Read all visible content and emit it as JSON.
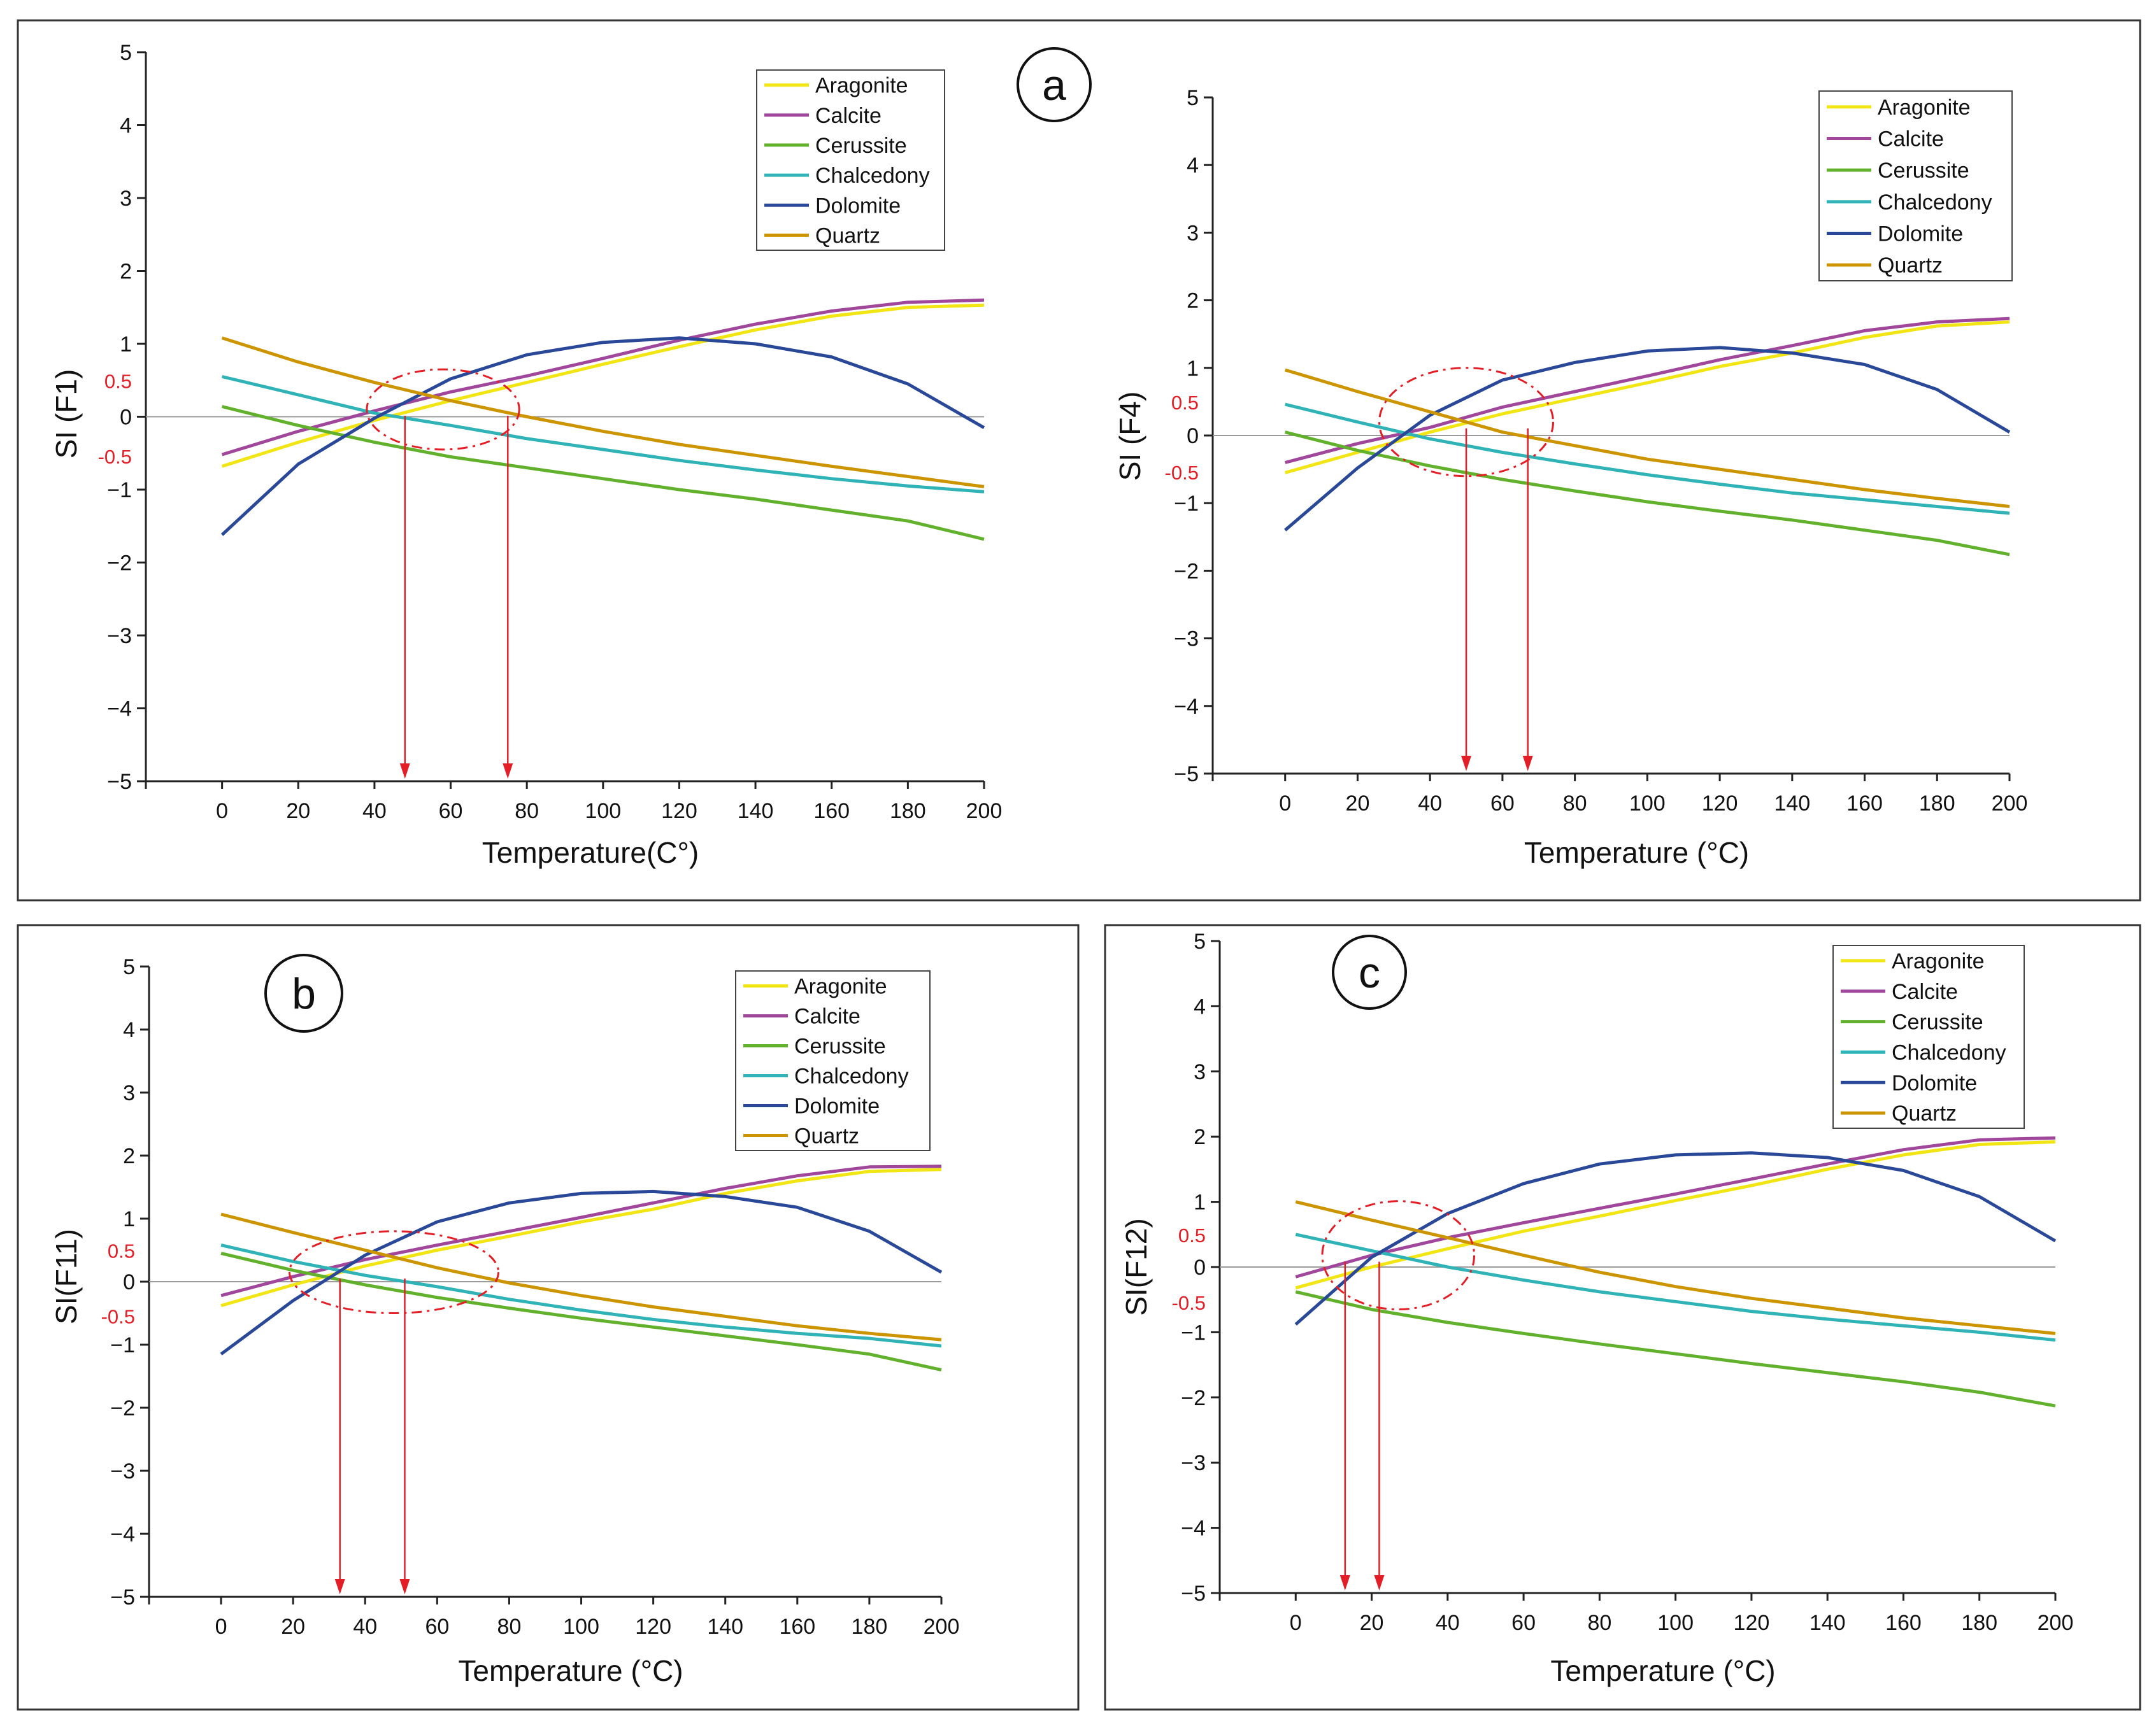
{
  "colors": {
    "Aragonite": "#f2e514",
    "Calcite": "#a0469b",
    "Cerussite": "#62b12c",
    "Chalcedony": "#2fb3b7",
    "Dolomite": "#2a4898",
    "Quartz": "#cc9500",
    "zero_line": "#9a9a9a",
    "annotation": "#e41e26",
    "axis": "#222222",
    "frame": "#333333"
  },
  "chart_data": [
    {
      "id": "F1",
      "type": "line",
      "panel_label": "a",
      "xlabel": "Temperature(C°)",
      "ylabel": "SI (F1)",
      "x": [
        0,
        20,
        40,
        60,
        80,
        100,
        120,
        140,
        160,
        180,
        200
      ],
      "xlim": [
        -20,
        200
      ],
      "ylim": [
        -5,
        5
      ],
      "x_ticks": [
        "0",
        "20",
        "40",
        "60",
        "80",
        "100",
        "120",
        "140",
        "160",
        "180",
        "200"
      ],
      "y_ticks": [
        "5",
        "4",
        "3",
        "2",
        "1",
        "0",
        "−1",
        "−2",
        "−3",
        "−4",
        "−5"
      ],
      "red_ticks": [
        "0.5",
        "-0.5"
      ],
      "legend": [
        "Aragonite",
        "Calcite",
        "Cerussite",
        "Chalcedony",
        "Dolomite",
        "Quartz"
      ],
      "series": [
        {
          "name": "Aragonite",
          "values": [
            -0.68,
            -0.35,
            -0.05,
            0.22,
            0.47,
            0.72,
            0.96,
            1.19,
            1.38,
            1.5,
            1.53
          ]
        },
        {
          "name": "Calcite",
          "values": [
            -0.52,
            -0.2,
            0.08,
            0.34,
            0.56,
            0.8,
            1.05,
            1.27,
            1.45,
            1.57,
            1.6
          ]
        },
        {
          "name": "Cerussite",
          "values": [
            0.14,
            -0.12,
            -0.35,
            -0.55,
            -0.7,
            -0.85,
            -1.0,
            -1.13,
            -1.28,
            -1.43,
            -1.68
          ]
        },
        {
          "name": "Chalcedony",
          "values": [
            0.55,
            0.3,
            0.05,
            -0.12,
            -0.3,
            -0.45,
            -0.6,
            -0.73,
            -0.85,
            -0.95,
            -1.03
          ]
        },
        {
          "name": "Dolomite",
          "values": [
            -1.62,
            -0.65,
            -0.02,
            0.52,
            0.85,
            1.02,
            1.08,
            1.0,
            0.82,
            0.45,
            -0.15
          ]
        },
        {
          "name": "Quartz",
          "values": [
            1.08,
            0.75,
            0.47,
            0.22,
            0.0,
            -0.2,
            -0.38,
            -0.53,
            -0.68,
            -0.82,
            -0.96
          ]
        }
      ],
      "arrows_x": [
        48,
        75
      ],
      "ellipse": {
        "cx": 58,
        "cy": 0.1,
        "rx": 20,
        "ry": 0.55
      }
    },
    {
      "id": "F4",
      "type": "line",
      "panel_label": "",
      "xlabel": "Temperature (°C)",
      "ylabel": "SI (F4)",
      "x": [
        0,
        20,
        40,
        60,
        80,
        100,
        120,
        140,
        160,
        180,
        200
      ],
      "xlim": [
        -20,
        200
      ],
      "ylim": [
        -5,
        5
      ],
      "x_ticks": [
        "0",
        "20",
        "40",
        "60",
        "80",
        "100",
        "120",
        "140",
        "160",
        "180",
        "200"
      ],
      "y_ticks": [
        "5",
        "4",
        "3",
        "2",
        "1",
        "0",
        "−1",
        "−2",
        "−3",
        "−4",
        "−5"
      ],
      "red_ticks": [
        "0.5",
        "-0.5"
      ],
      "legend": [
        "Aragonite",
        "Calcite",
        "Cerussite",
        "Chalcedony",
        "Dolomite",
        "Quartz"
      ],
      "series": [
        {
          "name": "Aragonite",
          "values": [
            -0.55,
            -0.25,
            0.05,
            0.32,
            0.55,
            0.78,
            1.02,
            1.22,
            1.45,
            1.62,
            1.68
          ]
        },
        {
          "name": "Calcite",
          "values": [
            -0.4,
            -0.12,
            0.12,
            0.42,
            0.65,
            0.88,
            1.12,
            1.33,
            1.55,
            1.68,
            1.73
          ]
        },
        {
          "name": "Cerussite",
          "values": [
            0.05,
            -0.22,
            -0.45,
            -0.65,
            -0.82,
            -0.98,
            -1.12,
            -1.25,
            -1.4,
            -1.55,
            -1.76
          ]
        },
        {
          "name": "Chalcedony",
          "values": [
            0.46,
            0.2,
            -0.05,
            -0.25,
            -0.42,
            -0.58,
            -0.72,
            -0.85,
            -0.95,
            -1.05,
            -1.15
          ]
        },
        {
          "name": "Dolomite",
          "values": [
            -1.4,
            -0.48,
            0.3,
            0.82,
            1.08,
            1.25,
            1.3,
            1.22,
            1.05,
            0.68,
            0.05
          ]
        },
        {
          "name": "Quartz",
          "values": [
            0.97,
            0.65,
            0.35,
            0.05,
            -0.15,
            -0.35,
            -0.5,
            -0.65,
            -0.8,
            -0.93,
            -1.05
          ]
        }
      ],
      "arrows_x": [
        50,
        67
      ],
      "ellipse": {
        "cx": 50,
        "cy": 0.2,
        "rx": 24,
        "ry": 0.8
      }
    },
    {
      "id": "F11",
      "type": "line",
      "panel_label": "b",
      "xlabel": "Temperature (°C)",
      "ylabel": "SI(F11)",
      "x": [
        0,
        20,
        40,
        60,
        80,
        100,
        120,
        140,
        160,
        180,
        200
      ],
      "xlim": [
        -20,
        200
      ],
      "ylim": [
        -5,
        5
      ],
      "x_ticks": [
        "0",
        "20",
        "40",
        "60",
        "80",
        "100",
        "120",
        "140",
        "160",
        "180",
        "200"
      ],
      "y_ticks": [
        "5",
        "4",
        "3",
        "2",
        "1",
        "0",
        "−1",
        "−2",
        "−3",
        "−4",
        "−5"
      ],
      "red_ticks": [
        "0.5",
        "-0.5"
      ],
      "legend": [
        "Aragonite",
        "Calcite",
        "Cerussite",
        "Chalcedony",
        "Dolomite",
        "Quartz"
      ],
      "series": [
        {
          "name": "Aragonite",
          "values": [
            -0.38,
            -0.05,
            0.25,
            0.5,
            0.72,
            0.95,
            1.15,
            1.4,
            1.6,
            1.75,
            1.78
          ]
        },
        {
          "name": "Calcite",
          "values": [
            -0.22,
            0.08,
            0.35,
            0.58,
            0.8,
            1.02,
            1.25,
            1.48,
            1.68,
            1.82,
            1.83
          ]
        },
        {
          "name": "Cerussite",
          "values": [
            0.45,
            0.18,
            -0.05,
            -0.25,
            -0.42,
            -0.58,
            -0.72,
            -0.86,
            -1.0,
            -1.15,
            -1.4
          ]
        },
        {
          "name": "Chalcedony",
          "values": [
            0.58,
            0.32,
            0.1,
            -0.08,
            -0.28,
            -0.45,
            -0.6,
            -0.72,
            -0.82,
            -0.9,
            -1.02
          ]
        },
        {
          "name": "Dolomite",
          "values": [
            -1.15,
            -0.3,
            0.42,
            0.95,
            1.25,
            1.4,
            1.43,
            1.35,
            1.18,
            0.8,
            0.15
          ]
        },
        {
          "name": "Quartz",
          "values": [
            1.07,
            0.78,
            0.5,
            0.22,
            -0.02,
            -0.22,
            -0.4,
            -0.55,
            -0.7,
            -0.82,
            -0.92
          ]
        }
      ],
      "arrows_x": [
        33,
        51
      ],
      "ellipse": {
        "cx": 48,
        "cy": 0.15,
        "rx": 29,
        "ry": 0.65
      }
    },
    {
      "id": "F12",
      "type": "line",
      "panel_label": "c",
      "xlabel": "Temperature (°C)",
      "ylabel": "SI(F12)",
      "x": [
        0,
        20,
        40,
        60,
        80,
        100,
        120,
        140,
        160,
        180,
        200
      ],
      "xlim": [
        -20,
        200
      ],
      "ylim": [
        -5,
        5
      ],
      "x_ticks": [
        "0",
        "20",
        "40",
        "60",
        "80",
        "100",
        "120",
        "140",
        "160",
        "180",
        "200"
      ],
      "y_ticks": [
        "5",
        "4",
        "3",
        "2",
        "1",
        "0",
        "−1",
        "−2",
        "−3",
        "−4",
        "−5"
      ],
      "red_ticks": [
        "0.5",
        "-0.5"
      ],
      "legend": [
        "Aragonite",
        "Calcite",
        "Cerussite",
        "Chalcedony",
        "Dolomite",
        "Quartz"
      ],
      "series": [
        {
          "name": "Aragonite",
          "values": [
            -0.32,
            0.0,
            0.28,
            0.55,
            0.78,
            1.02,
            1.25,
            1.5,
            1.72,
            1.88,
            1.92
          ]
        },
        {
          "name": "Calcite",
          "values": [
            -0.15,
            0.18,
            0.45,
            0.68,
            0.9,
            1.12,
            1.35,
            1.58,
            1.8,
            1.95,
            1.98
          ]
        },
        {
          "name": "Cerussite",
          "values": [
            -0.38,
            -0.65,
            -0.85,
            -1.02,
            -1.18,
            -1.33,
            -1.48,
            -1.62,
            -1.76,
            -1.92,
            -2.13
          ]
        },
        {
          "name": "Chalcedony",
          "values": [
            0.5,
            0.25,
            0.0,
            -0.2,
            -0.38,
            -0.53,
            -0.68,
            -0.8,
            -0.9,
            -1.0,
            -1.12
          ]
        },
        {
          "name": "Dolomite",
          "values": [
            -0.88,
            0.15,
            0.82,
            1.28,
            1.58,
            1.72,
            1.75,
            1.68,
            1.48,
            1.08,
            0.4
          ]
        },
        {
          "name": "Quartz",
          "values": [
            1.0,
            0.72,
            0.45,
            0.18,
            -0.08,
            -0.3,
            -0.48,
            -0.63,
            -0.78,
            -0.9,
            -1.02
          ]
        }
      ],
      "arrows_x": [
        13,
        22
      ],
      "ellipse": {
        "cx": 27,
        "cy": 0.18,
        "rx": 20,
        "ry": 0.83
      }
    }
  ]
}
